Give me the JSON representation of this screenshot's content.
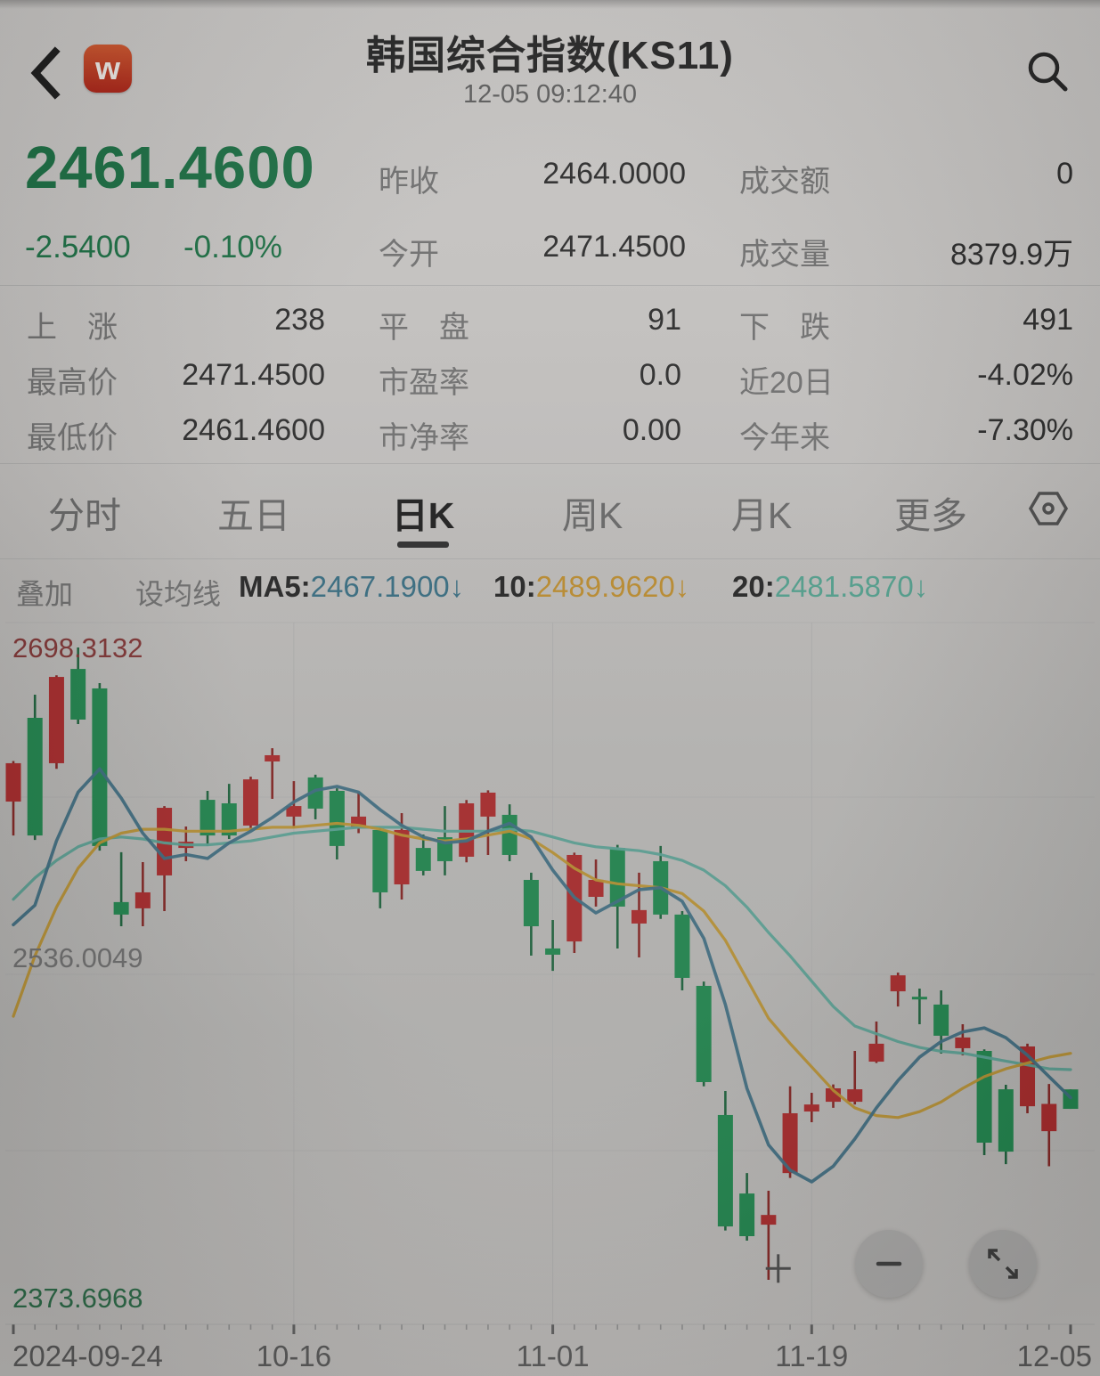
{
  "header": {
    "title": "韩国综合指数(KS11)",
    "timestamp": "12-05 09:12:40",
    "logo_letter": "w"
  },
  "quote": {
    "price": "2461.4600",
    "change": "-2.5400",
    "change_pct": "-0.10%",
    "price_color": "#1d6e44",
    "col1": [
      {
        "label": "昨收",
        "value": "2464.0000"
      },
      {
        "label": "今开",
        "value": "2471.4500"
      }
    ],
    "col2": [
      {
        "label": "成交额",
        "value": "0"
      },
      {
        "label": "成交量",
        "value": "8379.9万"
      }
    ]
  },
  "stats": {
    "rows": [
      [
        {
          "label": "上　涨",
          "value": "238"
        },
        {
          "label": "平　盘",
          "value": "91"
        },
        {
          "label": "下　跌",
          "value": "491"
        }
      ],
      [
        {
          "label": "最高价",
          "value": "2471.4500"
        },
        {
          "label": "市盈率",
          "value": "0.0"
        },
        {
          "label": "近20日",
          "value": "-4.02%"
        }
      ],
      [
        {
          "label": "最低价",
          "value": "2461.4600"
        },
        {
          "label": "市净率",
          "value": "0.00"
        },
        {
          "label": "今年来",
          "value": "-7.30%"
        }
      ]
    ]
  },
  "tabs": {
    "items": [
      "分时",
      "五日",
      "日K",
      "周K",
      "月K",
      "更多"
    ],
    "selected_index": 2
  },
  "ma_bar": {
    "overlay_label": "叠加",
    "set_ma_label": "设均线",
    "arrow": "↓",
    "items": [
      {
        "label": "MA5:",
        "value": "2467.1900",
        "color": "#35687c"
      },
      {
        "label": "10:",
        "value": "2489.9620",
        "color": "#b5872c"
      },
      {
        "label": "20:",
        "value": "2481.5870",
        "color": "#4f9a88"
      }
    ]
  },
  "chart_data": {
    "type": "candlestick",
    "y_min": 2373.6968,
    "y_max": 2698.3132,
    "y_labels": [
      {
        "text": "2698.3132",
        "pos": "high",
        "color": "#7c3434"
      },
      {
        "text": "2536.0049",
        "pos": "mid",
        "color": "#6b6b6b"
      },
      {
        "text": "2373.6968",
        "pos": "low",
        "color": "#2d6847"
      }
    ],
    "x_ticks": [
      {
        "index": 0,
        "label": "2024-09-24"
      },
      {
        "index": 13,
        "label": "10-16"
      },
      {
        "index": 25,
        "label": "11-01"
      },
      {
        "index": 37,
        "label": "11-19"
      },
      {
        "index": 49,
        "label": "12-05"
      }
    ],
    "colors": {
      "up": "#a1292a",
      "down": "#20804b",
      "up_wick": "#7e2523",
      "down_wick": "#1d5e3a",
      "ma5": "#3b677a",
      "ma10": "#b08a2e",
      "ma20": "#55998c",
      "grid": "#a3a3a3",
      "low_marker": "#4a4a4a"
    },
    "candles_ohlc": [
      [
        2619.2,
        2640.0,
        2601.8,
        2638.9
      ],
      [
        2662.2,
        2674.1,
        2599.5,
        2601.8
      ],
      [
        2638.9,
        2684.0,
        2636.0,
        2683.2
      ],
      [
        2687.3,
        2698.3132,
        2659.0,
        2661.3
      ],
      [
        2677.3,
        2680.0,
        2594.0,
        2596.4
      ],
      [
        2567.6,
        2593.2,
        2555.2,
        2561.2
      ],
      [
        2564.4,
        2588.1,
        2555.2,
        2572.6
      ],
      [
        2581.3,
        2616.9,
        2563.0,
        2616.0
      ],
      [
        2595.4,
        2606.4,
        2588.6,
        2598.6
      ],
      [
        2620.1,
        2624.7,
        2596.4,
        2601.8
      ],
      [
        2618.3,
        2628.3,
        2600.0,
        2601.8
      ],
      [
        2606.9,
        2632.0,
        2605.0,
        2630.6
      ],
      [
        2639.8,
        2646.6,
        2620.6,
        2643.0
      ],
      [
        2611.5,
        2629.7,
        2605.5,
        2616.9
      ],
      [
        2631.6,
        2633.0,
        2610.1,
        2615.6
      ],
      [
        2624.7,
        2626.0,
        2589.5,
        2596.4
      ],
      [
        2605.5,
        2623.8,
        2603.0,
        2611.5
      ],
      [
        2604.6,
        2606.0,
        2564.4,
        2572.6
      ],
      [
        2576.7,
        2613.3,
        2568.9,
        2604.6
      ],
      [
        2595.4,
        2602.3,
        2581.3,
        2583.6
      ],
      [
        2600.9,
        2616.9,
        2581.3,
        2588.6
      ],
      [
        2590.9,
        2620.0,
        2588.0,
        2618.3
      ],
      [
        2611.5,
        2625.0,
        2591.8,
        2623.8
      ],
      [
        2612.4,
        2617.8,
        2588.6,
        2591.8
      ],
      [
        2579.0,
        2582.7,
        2540.1,
        2555.2
      ],
      [
        2543.8,
        2558.4,
        2532.3,
        2540.6
      ],
      [
        2547.4,
        2593.0,
        2541.5,
        2591.8
      ],
      [
        2570.3,
        2589.5,
        2565.3,
        2579.0
      ],
      [
        2595.4,
        2597.0,
        2543.8,
        2565.3
      ],
      [
        2556.6,
        2582.7,
        2539.2,
        2563.5
      ],
      [
        2588.6,
        2596.4,
        2559.0,
        2561.2
      ],
      [
        2561.2,
        2563.0,
        2522.3,
        2528.7
      ],
      [
        2524.6,
        2526.8,
        2473.0,
        2475.2
      ],
      [
        2458.3,
        2470.6,
        2399.0,
        2401.1
      ],
      [
        2418.0,
        2428.5,
        2393.8,
        2396.1
      ],
      [
        2402.0,
        2419.4,
        2373.6968,
        2407.0
      ],
      [
        2428.5,
        2473.0,
        2426.0,
        2459.2
      ],
      [
        2460.1,
        2469.7,
        2454.6,
        2463.7
      ],
      [
        2465.1,
        2474.0,
        2462.0,
        2472.0
      ],
      [
        2465.1,
        2491.2,
        2463.7,
        2471.5
      ],
      [
        2485.7,
        2506.3,
        2485.0,
        2494.9
      ],
      [
        2521.8,
        2531.4,
        2514.0,
        2530.0
      ],
      [
        2519.0,
        2523.2,
        2504.9,
        2518.0
      ],
      [
        2515.0,
        2522.3,
        2489.8,
        2499.0
      ],
      [
        2492.6,
        2504.9,
        2488.9,
        2498.1
      ],
      [
        2491.2,
        2492.0,
        2437.7,
        2444.1
      ],
      [
        2471.5,
        2473.8,
        2433.1,
        2439.5
      ],
      [
        2462.8,
        2494.9,
        2459.2,
        2493.5
      ],
      [
        2450.0,
        2474.2,
        2432.0,
        2464.0
      ],
      [
        2471.45,
        2471.45,
        2461.46,
        2461.46
      ]
    ],
    "low_marker": {
      "x_index": 35.45,
      "price": 2379.5
    },
    "ma_lines": [
      {
        "name": "MA5",
        "values": [
          2556,
          2566,
          2599,
          2624,
          2636,
          2621,
          2603,
          2590,
          2592,
          2590,
          2598,
          2604,
          2611,
          2619,
          2625,
          2627,
          2624,
          2615,
          2607,
          2601,
          2598,
          2599,
          2604,
          2608,
          2601,
          2584,
          2570,
          2562,
          2568,
          2574,
          2575,
          2568,
          2549,
          2515,
          2472,
          2443,
          2430,
          2424,
          2432,
          2446,
          2462,
          2476,
          2488,
          2496,
          2501,
          2503,
          2498,
          2489,
          2478,
          2467.19
        ]
      },
      {
        "name": "MA10",
        "values": [
          2509,
          2540,
          2565,
          2585,
          2598,
          2603,
          2605,
          2605,
          2604,
          2604,
          2604,
          2605,
          2606,
          2606,
          2607,
          2608,
          2607,
          2605,
          2602,
          2600,
          2599,
          2600,
          2602,
          2604,
          2600,
          2593,
          2585,
          2579,
          2577,
          2576,
          2575,
          2572,
          2563,
          2548,
          2528,
          2508,
          2495,
          2483,
          2471,
          2462,
          2458,
          2457,
          2460,
          2465,
          2472,
          2478,
          2482,
          2485,
          2488,
          2489.96
        ]
      },
      {
        "name": "MA20",
        "values": [
          2569,
          2580,
          2589,
          2596,
          2600,
          2601,
          2600,
          2598,
          2597,
          2597,
          2598,
          2599,
          2601,
          2603,
          2604,
          2605,
          2606,
          2606,
          2606,
          2605,
          2604,
          2604,
          2604,
          2605,
          2604,
          2601,
          2598,
          2596,
          2595,
          2594,
          2592,
          2589,
          2584,
          2576,
          2565,
          2552,
          2540,
          2527,
          2514,
          2504,
          2500,
          2496,
          2493,
          2491,
          2490,
          2488,
          2486,
          2484,
          2482,
          2481.59
        ]
      }
    ]
  },
  "buttons": {
    "zoom_out": "−",
    "expand": "⤡"
  }
}
